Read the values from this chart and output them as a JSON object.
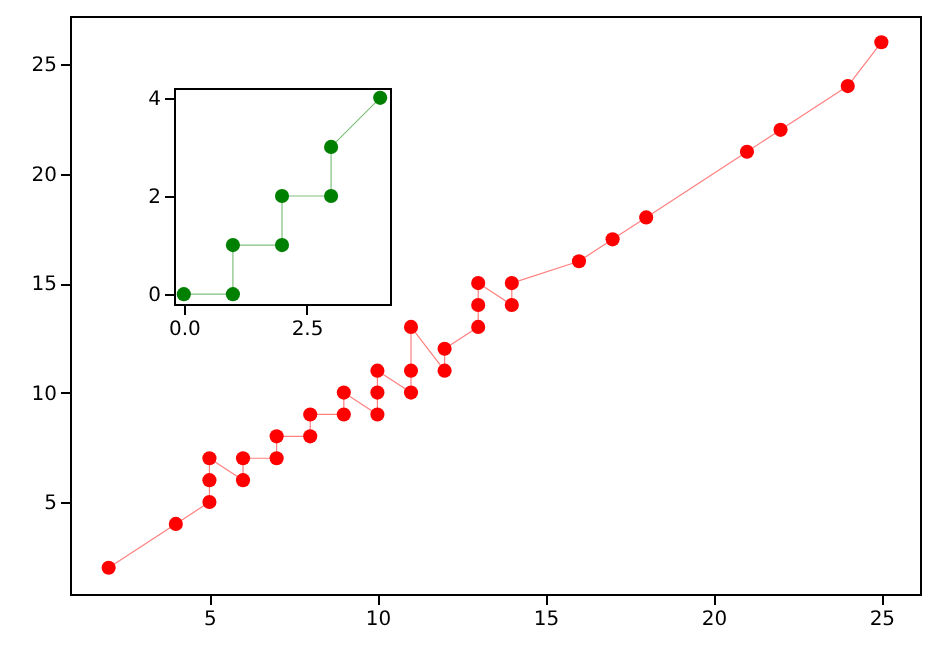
{
  "chart_data": [
    {
      "type": "line",
      "marker": "circle",
      "xlim": [
        0.85,
        26.15
      ],
      "ylim": [
        0.8,
        27.2
      ],
      "xticks": [
        5,
        10,
        15,
        20,
        25
      ],
      "yticks": [
        5,
        10,
        15,
        20,
        25
      ],
      "series": [
        {
          "color": "#ff0000",
          "x": [
            2,
            4,
            5,
            5,
            5,
            6,
            6,
            7,
            7,
            8,
            8,
            9,
            9,
            10,
            10,
            10,
            11,
            11,
            11,
            12,
            12,
            13,
            13,
            13,
            14,
            14,
            16,
            17,
            18,
            21,
            22,
            24,
            25
          ],
          "values": [
            2,
            4,
            5,
            6,
            7,
            6,
            7,
            7,
            8,
            8,
            9,
            9,
            10,
            9,
            10,
            11,
            10,
            11,
            13,
            11,
            12,
            13,
            14,
            15,
            14,
            15,
            16,
            17,
            18,
            21,
            22,
            24,
            26
          ]
        }
      ]
    },
    {
      "type": "line",
      "marker": "circle",
      "xlim": [
        -0.2,
        4.2
      ],
      "ylim": [
        -0.2,
        4.2
      ],
      "xticks": [
        {
          "value": 0,
          "label": "0.0"
        },
        {
          "value": 2.5,
          "label": "2.5"
        }
      ],
      "yticks": [
        0,
        2,
        4
      ],
      "series": [
        {
          "color": "#008000",
          "x": [
            0,
            1,
            1,
            2,
            2,
            3,
            3,
            4
          ],
          "values": [
            0,
            0,
            1,
            1,
            2,
            2,
            3,
            4
          ]
        }
      ]
    }
  ]
}
